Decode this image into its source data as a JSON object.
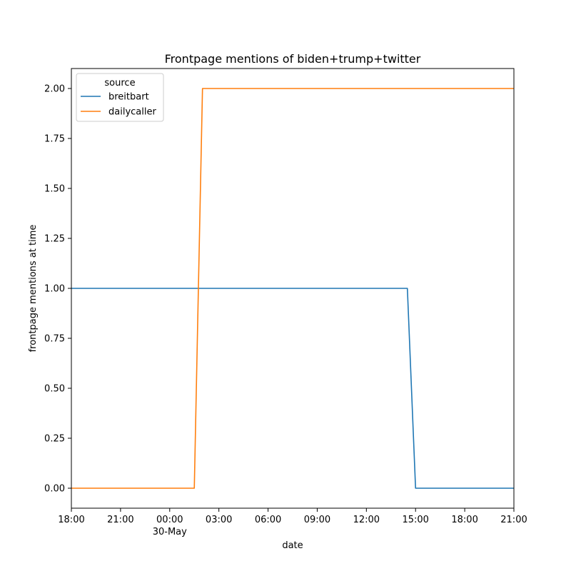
{
  "chart_data": {
    "type": "line",
    "title": "Frontpage mentions of biden+trump+twitter",
    "xlabel": "date",
    "ylabel": "frontpage mentions at time",
    "legend_title": "source",
    "legend_position": "top-left",
    "grid": false,
    "xlim": [
      "2023-05-29 18:00",
      "2023-05-30 21:00"
    ],
    "ylim": [
      -0.1,
      2.1
    ],
    "x_ticks": [
      {
        "t": "2023-05-29 18:00",
        "label": "18:00",
        "sublabel": ""
      },
      {
        "t": "2023-05-29 21:00",
        "label": "21:00",
        "sublabel": ""
      },
      {
        "t": "2023-05-30 00:00",
        "label": "00:00",
        "sublabel": "30-May"
      },
      {
        "t": "2023-05-30 03:00",
        "label": "03:00",
        "sublabel": ""
      },
      {
        "t": "2023-05-30 06:00",
        "label": "06:00",
        "sublabel": ""
      },
      {
        "t": "2023-05-30 09:00",
        "label": "09:00",
        "sublabel": ""
      },
      {
        "t": "2023-05-30 12:00",
        "label": "12:00",
        "sublabel": ""
      },
      {
        "t": "2023-05-30 15:00",
        "label": "15:00",
        "sublabel": ""
      },
      {
        "t": "2023-05-30 18:00",
        "label": "18:00",
        "sublabel": ""
      },
      {
        "t": "2023-05-30 21:00",
        "label": "21:00",
        "sublabel": ""
      }
    ],
    "y_ticks": [
      0.0,
      0.25,
      0.5,
      0.75,
      1.0,
      1.25,
      1.5,
      1.75,
      2.0
    ],
    "y_tick_labels": [
      "0.00",
      "0.25",
      "0.50",
      "0.75",
      "1.00",
      "1.25",
      "1.50",
      "1.75",
      "2.00"
    ],
    "series": [
      {
        "name": "breitbart",
        "color": "#1f77b4",
        "points": [
          {
            "x": "2023-05-29 18:00",
            "y": 1
          },
          {
            "x": "2023-05-30 14:30",
            "y": 1
          },
          {
            "x": "2023-05-30 15:00",
            "y": 0
          },
          {
            "x": "2023-05-30 21:00",
            "y": 0
          }
        ]
      },
      {
        "name": "dailycaller",
        "color": "#ff7f0e",
        "points": [
          {
            "x": "2023-05-29 18:00",
            "y": 0
          },
          {
            "x": "2023-05-30 01:30",
            "y": 0
          },
          {
            "x": "2023-05-30 02:00",
            "y": 2
          },
          {
            "x": "2023-05-30 21:00",
            "y": 2
          }
        ]
      }
    ]
  }
}
